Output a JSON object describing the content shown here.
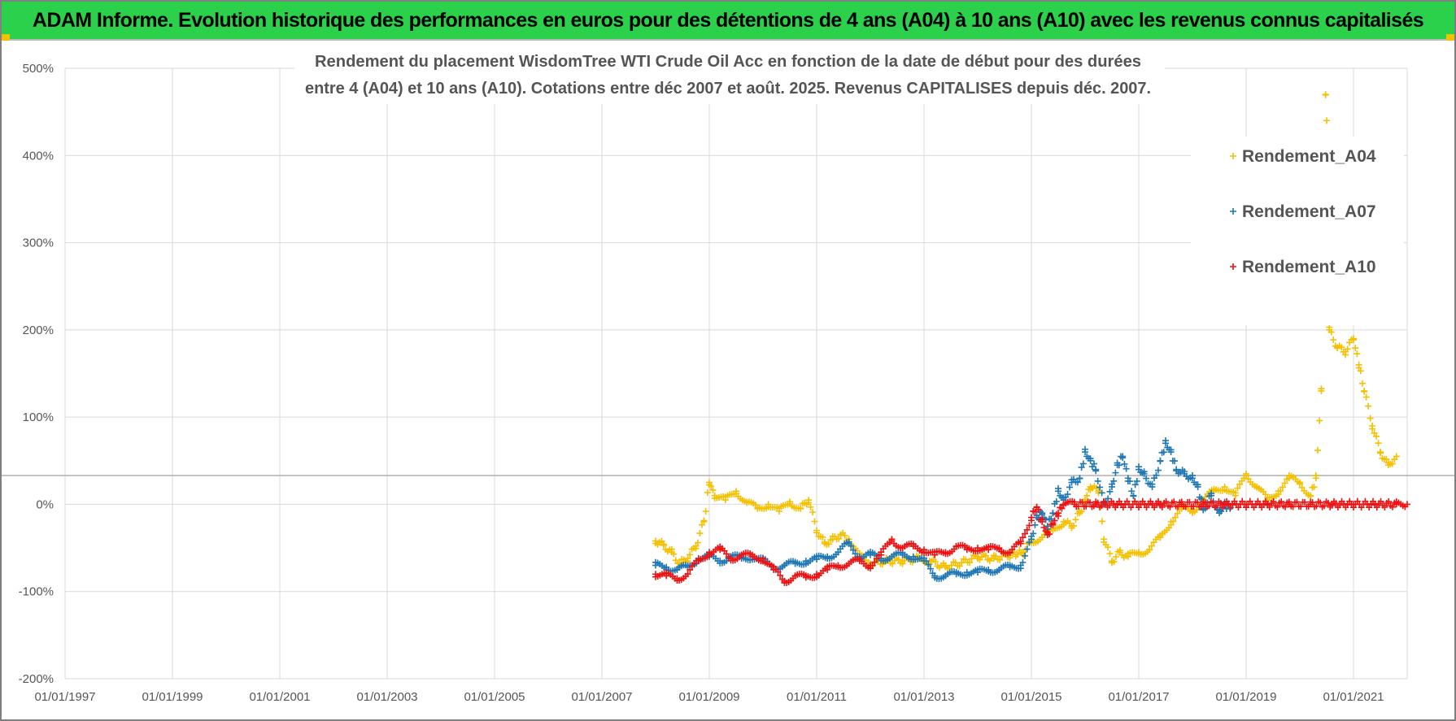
{
  "banner": {
    "title": "ADAM Informe. Evolution historique des performances en euros pour des détentions de 4 ans (A04) à 10 ans (A10) avec les revenus connus capitalisés",
    "background": "#2bd14b"
  },
  "chart_data": {
    "type": "scatter",
    "title_lines": [
      "Rendement du placement WisdomTree WTI Crude Oil Acc en fonction de la date de début pour des durées",
      "entre 4 (A04) et 10 ans (A10).  Cotations entre déc 2007 et août. 2025. Revenus CAPITALISES depuis déc. 2007."
    ],
    "xlabel": "",
    "ylabel": "",
    "x_range": [
      1997.0,
      2022.0
    ],
    "x_ticks": [
      "01/01/1997",
      "01/01/1999",
      "01/01/2001",
      "01/01/2003",
      "01/01/2005",
      "01/01/2007",
      "01/01/2009",
      "01/01/2011",
      "01/01/2013",
      "01/01/2015",
      "01/01/2017",
      "01/01/2019",
      "01/01/2021"
    ],
    "y_range": [
      -200,
      500
    ],
    "y_ticks": [
      "500%",
      "400%",
      "300%",
      "200%",
      "100%",
      "0%",
      "-100%",
      "-200%"
    ],
    "y_tick_values": [
      500,
      400,
      300,
      200,
      100,
      0,
      -100,
      -200
    ],
    "reference_line_y": 33,
    "grid": true,
    "legend_position": "right",
    "marker": "+",
    "series": [
      {
        "name": "Rendement_A04",
        "color": "#f5c000",
        "points": [
          [
            2008.0,
            -42
          ],
          [
            2008.15,
            -47
          ],
          [
            2008.3,
            -55
          ],
          [
            2008.45,
            -68
          ],
          [
            2008.6,
            -62
          ],
          [
            2008.75,
            -48
          ],
          [
            2008.9,
            -20
          ],
          [
            2009.0,
            25
          ],
          [
            2009.1,
            10
          ],
          [
            2009.3,
            5
          ],
          [
            2009.5,
            15
          ],
          [
            2009.7,
            2
          ],
          [
            2009.9,
            -5
          ],
          [
            2010.1,
            0
          ],
          [
            2010.3,
            -8
          ],
          [
            2010.5,
            3
          ],
          [
            2010.7,
            -5
          ],
          [
            2010.85,
            5
          ],
          [
            2011.0,
            -30
          ],
          [
            2011.15,
            -45
          ],
          [
            2011.3,
            -40
          ],
          [
            2011.45,
            -35
          ],
          [
            2011.6,
            -40
          ],
          [
            2011.8,
            -60
          ],
          [
            2012.0,
            -68
          ],
          [
            2012.3,
            -65
          ],
          [
            2012.6,
            -65
          ],
          [
            2012.9,
            -62
          ],
          [
            2013.1,
            -65
          ],
          [
            2013.4,
            -72
          ],
          [
            2013.7,
            -67
          ],
          [
            2014.0,
            -60
          ],
          [
            2014.3,
            -62
          ],
          [
            2014.6,
            -58
          ],
          [
            2014.85,
            -55
          ],
          [
            2015.0,
            -42
          ],
          [
            2015.2,
            -38
          ],
          [
            2015.4,
            -30
          ],
          [
            2015.6,
            -20
          ],
          [
            2015.75,
            -25
          ],
          [
            2015.9,
            -10
          ],
          [
            2016.0,
            5
          ],
          [
            2016.1,
            20
          ],
          [
            2016.25,
            15
          ],
          [
            2016.35,
            -40
          ],
          [
            2016.5,
            -65
          ],
          [
            2016.65,
            -55
          ],
          [
            2016.8,
            -60
          ],
          [
            2017.0,
            -55
          ],
          [
            2017.2,
            -52
          ],
          [
            2017.4,
            -38
          ],
          [
            2017.6,
            -20
          ],
          [
            2017.8,
            -5
          ],
          [
            2018.0,
            -8
          ],
          [
            2018.2,
            5
          ],
          [
            2018.4,
            15
          ],
          [
            2018.6,
            20
          ],
          [
            2018.8,
            10
          ],
          [
            2019.0,
            35
          ],
          [
            2019.2,
            20
          ],
          [
            2019.4,
            5
          ],
          [
            2019.6,
            15
          ],
          [
            2019.8,
            30
          ],
          [
            2020.0,
            25
          ],
          [
            2020.2,
            10
          ],
          [
            2020.3,
            30
          ],
          [
            2020.4,
            130
          ],
          [
            2020.45,
            210
          ],
          [
            2020.55,
            200
          ],
          [
            2020.7,
            180
          ],
          [
            2020.85,
            175
          ],
          [
            2021.0,
            190
          ],
          [
            2021.1,
            160
          ],
          [
            2021.2,
            130
          ],
          [
            2021.35,
            90
          ],
          [
            2021.5,
            60
          ],
          [
            2021.65,
            45
          ],
          [
            2021.8,
            55
          ],
          [
            2020.48,
            470
          ],
          [
            2020.5,
            440
          ]
        ]
      },
      {
        "name": "Rendement_A07",
        "color": "#1f77b4",
        "points": [
          [
            2008.0,
            -70
          ],
          [
            2008.2,
            -72
          ],
          [
            2008.4,
            -75
          ],
          [
            2008.6,
            -72
          ],
          [
            2008.8,
            -62
          ],
          [
            2009.0,
            -60
          ],
          [
            2009.2,
            -65
          ],
          [
            2009.4,
            -60
          ],
          [
            2009.6,
            -62
          ],
          [
            2009.8,
            -60
          ],
          [
            2010.0,
            -65
          ],
          [
            2010.2,
            -72
          ],
          [
            2010.4,
            -70
          ],
          [
            2010.6,
            -68
          ],
          [
            2010.8,
            -65
          ],
          [
            2011.0,
            -63
          ],
          [
            2011.2,
            -60
          ],
          [
            2011.4,
            -55
          ],
          [
            2011.6,
            -45
          ],
          [
            2011.8,
            -60
          ],
          [
            2012.0,
            -58
          ],
          [
            2012.2,
            -62
          ],
          [
            2012.4,
            -60
          ],
          [
            2012.6,
            -58
          ],
          [
            2012.8,
            -60
          ],
          [
            2013.0,
            -65
          ],
          [
            2013.2,
            -82
          ],
          [
            2013.4,
            -82
          ],
          [
            2013.6,
            -80
          ],
          [
            2013.8,
            -78
          ],
          [
            2014.0,
            -78
          ],
          [
            2014.2,
            -75
          ],
          [
            2014.4,
            -75
          ],
          [
            2014.6,
            -72
          ],
          [
            2014.8,
            -70
          ],
          [
            2015.0,
            -40
          ],
          [
            2015.1,
            -15
          ],
          [
            2015.2,
            -10
          ],
          [
            2015.3,
            -25
          ],
          [
            2015.4,
            -10
          ],
          [
            2015.5,
            15
          ],
          [
            2015.6,
            5
          ],
          [
            2015.75,
            25
          ],
          [
            2015.9,
            30
          ],
          [
            2016.0,
            60
          ],
          [
            2016.1,
            50
          ],
          [
            2016.2,
            40
          ],
          [
            2016.35,
            0
          ],
          [
            2016.5,
            20
          ],
          [
            2016.6,
            45
          ],
          [
            2016.7,
            55
          ],
          [
            2016.8,
            30
          ],
          [
            2016.9,
            10
          ],
          [
            2017.0,
            40
          ],
          [
            2017.1,
            35
          ],
          [
            2017.25,
            20
          ],
          [
            2017.4,
            50
          ],
          [
            2017.5,
            70
          ],
          [
            2017.6,
            60
          ],
          [
            2017.7,
            40
          ],
          [
            2017.85,
            35
          ],
          [
            2018.0,
            30
          ],
          [
            2018.1,
            20
          ],
          [
            2018.2,
            -5
          ],
          [
            2018.35,
            10
          ],
          [
            2018.5,
            -10
          ],
          [
            2018.6,
            0
          ],
          [
            2018.7,
            -5
          ]
        ]
      },
      {
        "name": "Rendement_A10",
        "color": "#ee1111",
        "points": [
          [
            2008.0,
            -80
          ],
          [
            2008.2,
            -82
          ],
          [
            2008.4,
            -85
          ],
          [
            2008.6,
            -80
          ],
          [
            2008.8,
            -65
          ],
          [
            2009.0,
            -55
          ],
          [
            2009.2,
            -52
          ],
          [
            2009.4,
            -62
          ],
          [
            2009.6,
            -58
          ],
          [
            2009.8,
            -60
          ],
          [
            2010.0,
            -62
          ],
          [
            2010.2,
            -75
          ],
          [
            2010.4,
            -88
          ],
          [
            2010.6,
            -82
          ],
          [
            2010.8,
            -84
          ],
          [
            2011.0,
            -80
          ],
          [
            2011.2,
            -75
          ],
          [
            2011.4,
            -70
          ],
          [
            2011.6,
            -68
          ],
          [
            2011.8,
            -65
          ],
          [
            2012.0,
            -70
          ],
          [
            2012.2,
            -58
          ],
          [
            2012.4,
            -40
          ],
          [
            2012.6,
            -50
          ],
          [
            2012.8,
            -48
          ],
          [
            2013.0,
            -52
          ],
          [
            2013.2,
            -58
          ],
          [
            2013.4,
            -55
          ],
          [
            2013.6,
            -48
          ],
          [
            2013.8,
            -52
          ],
          [
            2014.0,
            -50
          ],
          [
            2014.2,
            -52
          ],
          [
            2014.4,
            -50
          ],
          [
            2014.6,
            -55
          ],
          [
            2014.8,
            -45
          ],
          [
            2015.0,
            -15
          ],
          [
            2015.1,
            -3
          ],
          [
            2015.2,
            -20
          ],
          [
            2015.3,
            -35
          ],
          [
            2015.4,
            -22
          ],
          [
            2015.5,
            -10
          ],
          [
            2015.6,
            0
          ],
          [
            2015.8,
            0
          ],
          [
            2016.2,
            0
          ],
          [
            2016.6,
            0
          ],
          [
            2017.0,
            0
          ],
          [
            2017.4,
            0
          ],
          [
            2017.8,
            0
          ],
          [
            2018.2,
            0
          ],
          [
            2018.6,
            0
          ],
          [
            2019.0,
            0
          ],
          [
            2019.4,
            0
          ],
          [
            2019.8,
            0
          ],
          [
            2020.2,
            0
          ],
          [
            2020.6,
            0
          ],
          [
            2021.0,
            0
          ],
          [
            2021.4,
            0
          ],
          [
            2021.8,
            0
          ],
          [
            2022.0,
            0
          ]
        ]
      }
    ]
  }
}
